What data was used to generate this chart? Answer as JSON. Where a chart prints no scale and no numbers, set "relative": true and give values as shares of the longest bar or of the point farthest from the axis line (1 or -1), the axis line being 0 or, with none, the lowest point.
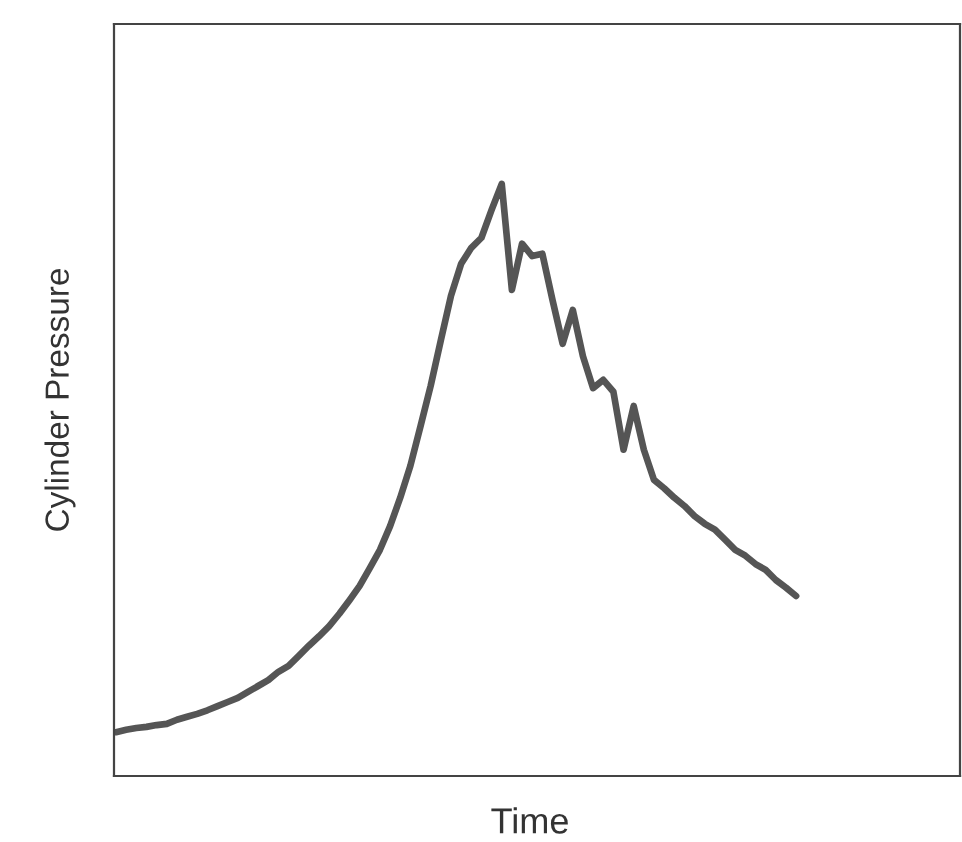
{
  "chart_data": {
    "type": "line",
    "relative": true,
    "xlabel": "Time",
    "ylabel": "Cylinder Pressure",
    "categories": [
      null,
      null,
      null,
      null,
      null,
      null,
      null,
      null,
      null,
      null,
      null,
      null,
      null,
      null,
      null,
      null,
      null,
      null,
      null,
      null,
      null,
      null,
      null,
      null,
      null,
      null,
      null,
      null,
      null,
      null,
      null,
      null,
      null,
      null,
      null,
      null,
      null,
      null,
      null,
      null,
      null,
      null,
      null,
      null,
      null,
      null,
      null,
      null,
      null,
      null,
      null,
      null,
      null,
      null,
      null,
      null,
      null,
      null,
      null,
      null,
      null,
      null,
      null,
      null,
      null,
      null,
      null,
      null
    ],
    "series": [
      {
        "color": "#555555",
        "values": [
          0.074,
          0.078,
          0.081,
          0.083,
          0.086,
          0.088,
          0.095,
          0.1,
          0.105,
          0.111,
          0.118,
          0.125,
          0.132,
          0.142,
          0.152,
          0.162,
          0.176,
          0.186,
          0.203,
          0.22,
          0.236,
          0.253,
          0.274,
          0.297,
          0.321,
          0.351,
          0.382,
          0.422,
          0.47,
          0.524,
          0.591,
          0.659,
          0.736,
          0.811,
          0.865,
          0.892,
          0.909,
          0.956,
          1,
          0.821,
          0.899,
          0.878,
          0.882,
          0.804,
          0.73,
          0.787,
          0.709,
          0.655,
          0.669,
          0.649,
          0.551,
          0.625,
          0.551,
          0.5,
          0.486,
          0.47,
          0.456,
          0.439,
          0.426,
          0.416,
          0.399,
          0.382,
          0.372,
          0.358,
          0.348,
          0.331,
          0.318,
          0.304
        ]
      }
    ],
    "grid": false,
    "legend": false,
    "marker": "none",
    "line_style": "solid"
  }
}
